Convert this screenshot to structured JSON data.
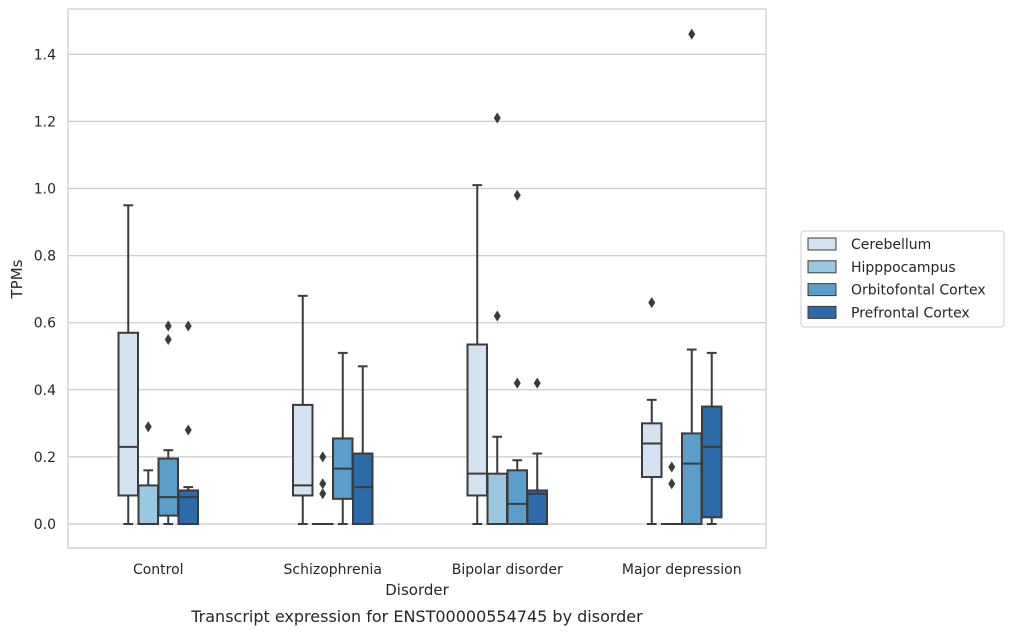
{
  "chart_data": {
    "type": "box",
    "title": "",
    "caption": "Transcript expression for ENST00000554745 by disorder",
    "xlabel": "Disorder",
    "ylabel": "TPMs",
    "ylim": [
      -0.07,
      1.54
    ],
    "yticks": [
      0.0,
      0.2,
      0.4,
      0.6,
      0.8,
      1.0,
      1.2,
      1.4
    ],
    "ytick_labels": [
      "0.0",
      "0.2",
      "0.4",
      "0.6",
      "0.8",
      "1.0",
      "1.2",
      "1.4"
    ],
    "grid": "horizontal",
    "legend_position": "right",
    "categories": [
      "Control",
      "Schizophrenia",
      "Bipolar disorder",
      "Major depression"
    ],
    "series": [
      {
        "name": "Cerebellum",
        "color": "#d3e3f2",
        "boxes": [
          {
            "whislo": 0.0,
            "q1": 0.085,
            "med": 0.23,
            "q3": 0.57,
            "whishi": 0.95,
            "fliers": []
          },
          {
            "whislo": 0.0,
            "q1": 0.085,
            "med": 0.115,
            "q3": 0.355,
            "whishi": 0.68,
            "fliers": []
          },
          {
            "whislo": 0.0,
            "q1": 0.085,
            "med": 0.15,
            "q3": 0.535,
            "whishi": 1.01,
            "fliers": []
          },
          {
            "whislo": 0.0,
            "q1": 0.14,
            "med": 0.24,
            "q3": 0.3,
            "whishi": 0.37,
            "fliers": [
              0.66
            ]
          }
        ]
      },
      {
        "name": "Hipppocampus",
        "color": "#9ac8e0",
        "boxes": [
          {
            "whislo": 0.0,
            "q1": 0.0,
            "med": 0.0,
            "q3": 0.115,
            "whishi": 0.16,
            "fliers": [
              0.29
            ]
          },
          {
            "whislo": 0.0,
            "q1": 0.0,
            "med": 0.0,
            "q3": 0.0,
            "whishi": 0.0,
            "fliers": [
              0.09,
              0.12,
              0.2
            ]
          },
          {
            "whislo": 0.0,
            "q1": 0.0,
            "med": 0.0,
            "q3": 0.15,
            "whishi": 0.26,
            "fliers": [
              0.62,
              1.21
            ]
          },
          {
            "whislo": 0.0,
            "q1": 0.0,
            "med": 0.0,
            "q3": 0.0,
            "whishi": 0.0,
            "fliers": [
              0.12,
              0.17
            ]
          }
        ]
      },
      {
        "name": "Orbitofontal Cortex",
        "color": "#5a9ec9",
        "boxes": [
          {
            "whislo": 0.0,
            "q1": 0.025,
            "med": 0.08,
            "q3": 0.195,
            "whishi": 0.22,
            "fliers": [
              0.55,
              0.59
            ]
          },
          {
            "whislo": 0.0,
            "q1": 0.075,
            "med": 0.165,
            "q3": 0.255,
            "whishi": 0.51,
            "fliers": []
          },
          {
            "whislo": 0.0,
            "q1": 0.0,
            "med": 0.06,
            "q3": 0.16,
            "whishi": 0.19,
            "fliers": [
              0.42,
              0.98
            ]
          },
          {
            "whislo": 0.0,
            "q1": 0.0,
            "med": 0.18,
            "q3": 0.27,
            "whishi": 0.52,
            "fliers": [
              1.46
            ]
          }
        ]
      },
      {
        "name": "Prefrontal Cortex",
        "color": "#2b6ba9",
        "boxes": [
          {
            "whislo": 0.0,
            "q1": 0.0,
            "med": 0.08,
            "q3": 0.1,
            "whishi": 0.11,
            "fliers": [
              0.28,
              0.59
            ]
          },
          {
            "whislo": 0.0,
            "q1": 0.0,
            "med": 0.11,
            "q3": 0.21,
            "whishi": 0.47,
            "fliers": []
          },
          {
            "whislo": 0.0,
            "q1": 0.0,
            "med": 0.09,
            "q3": 0.1,
            "whishi": 0.21,
            "fliers": [
              0.42
            ]
          },
          {
            "whislo": 0.0,
            "q1": 0.02,
            "med": 0.23,
            "q3": 0.35,
            "whishi": 0.51,
            "fliers": []
          }
        ]
      }
    ],
    "colors": {
      "line": "#3b3b3b",
      "grid": "#cccccc",
      "frame": "#cccccc",
      "text": "#262626"
    }
  }
}
